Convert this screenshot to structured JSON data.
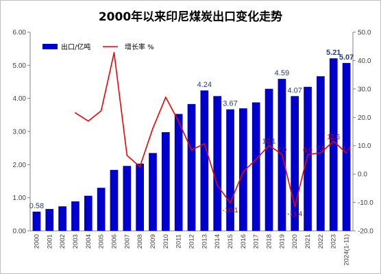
{
  "chart_data": {
    "type": "bar",
    "title": "2000年以来印尼煤炭出口变化走势",
    "categories": [
      "2000",
      "2001",
      "2002",
      "2003",
      "2004",
      "2005",
      "2006",
      "2007",
      "2008",
      "2009",
      "2010",
      "2011",
      "2012",
      "2013",
      "2014",
      "2015",
      "2016",
      "2017",
      "2018",
      "2019",
      "2020",
      "2021",
      "2022",
      "2023",
      "2024(1-11)"
    ],
    "series": [
      {
        "name": "出口/亿吨",
        "type": "bar",
        "axis": "left",
        "color": "#0000cc",
        "values": [
          0.58,
          0.66,
          0.74,
          0.89,
          1.06,
          1.3,
          1.84,
          1.96,
          2.03,
          2.35,
          2.98,
          3.53,
          3.83,
          4.24,
          4.07,
          3.67,
          3.7,
          3.88,
          4.29,
          4.59,
          4.07,
          4.35,
          4.67,
          5.21,
          5.07
        ]
      },
      {
        "name": "增长率 %",
        "type": "line",
        "axis": "right",
        "color": "#ee0000",
        "values": [
          null,
          null,
          null,
          21.6,
          18.7,
          22.3,
          42.8,
          6.6,
          2.6,
          16.1,
          27.1,
          18.5,
          8.5,
          10.7,
          -4.0,
          -10.1,
          0.8,
          5.2,
          10.1,
          7.0,
          -11.4,
          6.9,
          7.5,
          11.6,
          7.4
        ]
      }
    ],
    "bar_labels": [
      {
        "index": 0,
        "text": "0.58",
        "bold": false
      },
      {
        "index": 13,
        "text": "4.24",
        "bold": false
      },
      {
        "index": 15,
        "text": "3.67",
        "bold": false
      },
      {
        "index": 19,
        "text": "4.59",
        "bold": false
      },
      {
        "index": 20,
        "text": "4.07",
        "bold": false
      },
      {
        "index": 23,
        "text": "5.21",
        "bold": true
      },
      {
        "index": 24,
        "text": "5.07",
        "bold": true
      }
    ],
    "line_labels": [
      {
        "index": 15,
        "text": "-10.1"
      },
      {
        "index": 18,
        "text": "10.1"
      },
      {
        "index": 19,
        "text": "7.0"
      },
      {
        "index": 20,
        "text": "-11.4"
      },
      {
        "index": 21,
        "text": "6.9"
      },
      {
        "index": 22,
        "text": "7.5"
      },
      {
        "index": 23,
        "text": "11.6"
      },
      {
        "index": 24,
        "text": "7.4"
      }
    ],
    "y_left": {
      "min": 0,
      "max": 6,
      "step": 1,
      "decimals": 2
    },
    "y_right": {
      "min": -20,
      "max": 50,
      "step": 10,
      "decimals": 1
    },
    "grid": false,
    "legend_position": "top-left"
  }
}
